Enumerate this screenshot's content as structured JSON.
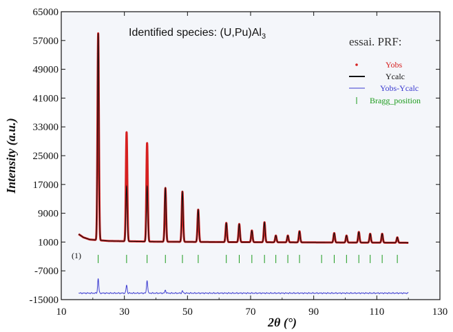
{
  "chart_data": {
    "type": "line",
    "title": "",
    "annotation": {
      "prefix": "Identified species:  (U,Pu)Al",
      "subscript": "3"
    },
    "xlabel": "2θ (°)",
    "ylabel": "Intensity (a.u.)",
    "xlim": [
      10,
      130
    ],
    "ylim": [
      -15000,
      65000
    ],
    "x_ticks": [
      10,
      30,
      50,
      70,
      90,
      110,
      130
    ],
    "y_ticks": [
      -15000,
      -7000,
      1000,
      9000,
      17000,
      25000,
      33000,
      41000,
      49000,
      57000,
      65000
    ],
    "legend": {
      "title": "essai. PRF:",
      "position": "top-right",
      "entries": [
        {
          "label": "Yobs",
          "color": "#d62020",
          "marker": "dot"
        },
        {
          "label": "Ycalc",
          "color": "#111111",
          "marker": "line"
        },
        {
          "label": "Yobs-Ycalc",
          "color": "#3a3ad0",
          "marker": "line"
        },
        {
          "label": "Bragg_position",
          "color": "#1a9a1a",
          "marker": "tick"
        }
      ]
    },
    "phase_label": "(1)",
    "background": [
      [
        15.5,
        3200
      ],
      [
        17,
        2300
      ],
      [
        19,
        1700
      ],
      [
        25,
        1300
      ],
      [
        40,
        1100
      ],
      [
        60,
        1000
      ],
      [
        90,
        900
      ],
      [
        120,
        800
      ]
    ],
    "peaks": [
      {
        "x": 21.7,
        "yobs": 59000,
        "ycalc": 59000
      },
      {
        "x": 30.7,
        "yobs": 31500,
        "ycalc": 16500
      },
      {
        "x": 37.2,
        "yobs": 28500,
        "ycalc": 16500
      },
      {
        "x": 43.0,
        "yobs": 16000,
        "ycalc": 16000
      },
      {
        "x": 48.4,
        "yobs": 15000,
        "ycalc": 15000
      },
      {
        "x": 53.4,
        "yobs": 10000,
        "ycalc": 10000
      },
      {
        "x": 62.3,
        "yobs": 6300,
        "ycalc": 6300
      },
      {
        "x": 66.4,
        "yobs": 6000,
        "ycalc": 6000
      },
      {
        "x": 70.4,
        "yobs": 4200,
        "ycalc": 4200
      },
      {
        "x": 74.4,
        "yobs": 6500,
        "ycalc": 6500
      },
      {
        "x": 78.0,
        "yobs": 2800,
        "ycalc": 2800
      },
      {
        "x": 81.8,
        "yobs": 2800,
        "ycalc": 2800
      },
      {
        "x": 85.5,
        "yobs": 4000,
        "ycalc": 4000
      },
      {
        "x": 96.5,
        "yobs": 3500,
        "ycalc": 3500
      },
      {
        "x": 100.4,
        "yobs": 2800,
        "ycalc": 2800
      },
      {
        "x": 104.3,
        "yobs": 3800,
        "ycalc": 3800
      },
      {
        "x": 107.9,
        "yobs": 3300,
        "ycalc": 3300
      },
      {
        "x": 111.7,
        "yobs": 3300,
        "ycalc": 3300
      },
      {
        "x": 116.5,
        "yobs": 2300,
        "ycalc": 2300
      }
    ],
    "x_range": [
      15.5,
      120
    ],
    "bragg_positions": [
      21.7,
      30.7,
      37.2,
      43.0,
      48.4,
      53.4,
      62.3,
      66.4,
      70.4,
      74.4,
      78.0,
      81.8,
      85.5,
      92.5,
      96.5,
      100.4,
      104.3,
      107.9,
      111.7,
      116.5
    ],
    "bragg_y": -3700,
    "difference_baseline": -13200,
    "difference_spikes": [
      {
        "x": 21.7,
        "y": -9200
      },
      {
        "x": 30.7,
        "y": -11000
      },
      {
        "x": 37.2,
        "y": -9600
      },
      {
        "x": 43.0,
        "y": -12400
      },
      {
        "x": 48.4,
        "y": -12600
      }
    ],
    "colors": {
      "yobs": "#d62020",
      "ycalc": "#111111",
      "difference": "#3a3ad0",
      "bragg": "#1a9a1a",
      "plot_bg": "#f4f6fa"
    }
  }
}
